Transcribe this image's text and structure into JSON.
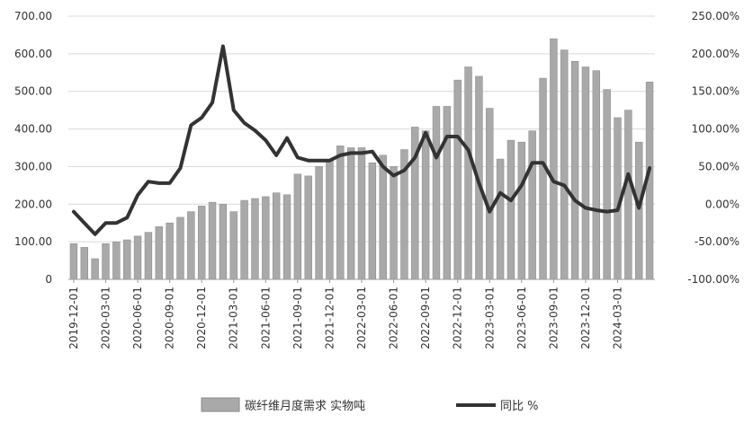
{
  "chart_data": {
    "type": "bar",
    "x_labels": [
      "2019-12-01",
      "2020-03-01",
      "2020-06-01",
      "2020-09-01",
      "2020-12-01",
      "2021-03-01",
      "2021-06-01",
      "2021-09-01",
      "2021-12-01",
      "2022-03-01",
      "2022-06-01",
      "2022-09-01",
      "2022-12-01",
      "2023-03-01",
      "2023-06-01",
      "2023-09-01",
      "2023-12-01",
      "2024-03-01"
    ],
    "left_axis": {
      "ylim": [
        0,
        700
      ],
      "ticks": [
        "0",
        "100.00",
        "200.00",
        "300.00",
        "400.00",
        "500.00",
        "600.00",
        "700.00"
      ]
    },
    "right_axis": {
      "ylim": [
        -100,
        250
      ],
      "ticks": [
        "-100.00%",
        "-50.00%",
        "0.00%",
        "50.00%",
        "100.00%",
        "150.00%",
        "200.00%",
        "250.00%"
      ]
    },
    "series": [
      {
        "name": "碳纤维月度需求 实物吨",
        "kind": "bar",
        "axis": "left",
        "color": "#a9a9a9",
        "values": [
          95,
          85,
          55,
          95,
          100,
          105,
          115,
          125,
          140,
          150,
          165,
          180,
          195,
          205,
          200,
          180,
          210,
          215,
          220,
          230,
          225,
          280,
          275,
          300,
          315,
          355,
          350,
          350,
          310,
          330,
          300,
          345,
          405,
          395,
          460,
          460,
          530,
          565,
          540,
          455,
          320,
          370,
          365,
          395,
          535,
          640,
          610,
          580,
          565,
          555,
          505,
          430,
          450,
          365,
          525
        ]
      },
      {
        "name": "同比 %",
        "kind": "line",
        "axis": "right",
        "color": "#333333",
        "values": [
          -10,
          -25,
          -40,
          -25,
          -25,
          -18,
          12,
          30,
          28,
          28,
          48,
          105,
          115,
          135,
          210,
          125,
          108,
          98,
          85,
          65,
          88,
          62,
          58,
          58,
          58,
          65,
          68,
          68,
          70,
          50,
          38,
          45,
          62,
          95,
          62,
          90,
          90,
          72,
          28,
          -10,
          15,
          5,
          25,
          55,
          55,
          30,
          25,
          5,
          -5,
          -8,
          -10,
          -8,
          40,
          -5,
          48
        ]
      }
    ]
  }
}
